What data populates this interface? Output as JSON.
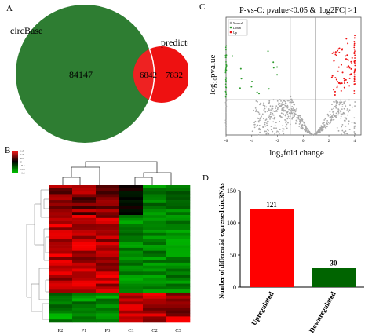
{
  "panels": {
    "a": {
      "letter": "A",
      "chart_data": {
        "type": "venn",
        "sets": [
          {
            "name": "circBase",
            "color": "#2e7d32"
          },
          {
            "name": "predicted",
            "color": "#ee1111"
          }
        ],
        "regions": {
          "circBase_only": 84147,
          "overlap": 6842,
          "predicted_only": 7832
        }
      }
    },
    "b": {
      "letter": "B",
      "chart_data": {
        "type": "heatmap",
        "columns": [
          "P2",
          "P1",
          "P3",
          "C1",
          "C2",
          "C3"
        ],
        "colorbar_ticks": [
          "1.5",
          "1.0",
          "0.5",
          "0",
          "-0.5",
          "-1.0",
          "-1.5"
        ],
        "colors": {
          "high": "#ff1a1a",
          "mid": "#000000",
          "low": "#00c000"
        }
      }
    },
    "c": {
      "letter": "C",
      "chart_data": {
        "type": "scatter",
        "title": "P-vs-C: pvalue<0.05 & |log2FC| >1",
        "xlabel": "log₂fold change",
        "ylabel": "-log₁₀pvalue",
        "xlim": [
          -6,
          4.5
        ],
        "xticks": [
          -6,
          -4,
          -2,
          0,
          2,
          4
        ],
        "legend": [
          "Normal",
          "Down",
          "Up"
        ],
        "legend_position": "top-left",
        "colors": {
          "normal": "#a8a8a8",
          "down": "#2e9c2e",
          "up": "#ee1111"
        }
      }
    },
    "d": {
      "letter": "D",
      "chart_data": {
        "type": "bar",
        "categories": [
          "Upregulated",
          "Downregulated"
        ],
        "values": [
          121,
          30
        ],
        "colors": [
          "#ff0000",
          "#006400"
        ],
        "ylabel": "Number of differential expressed circRNAs",
        "ylim": [
          0,
          150
        ],
        "yticks": [
          0,
          50,
          100,
          150
        ]
      }
    }
  }
}
